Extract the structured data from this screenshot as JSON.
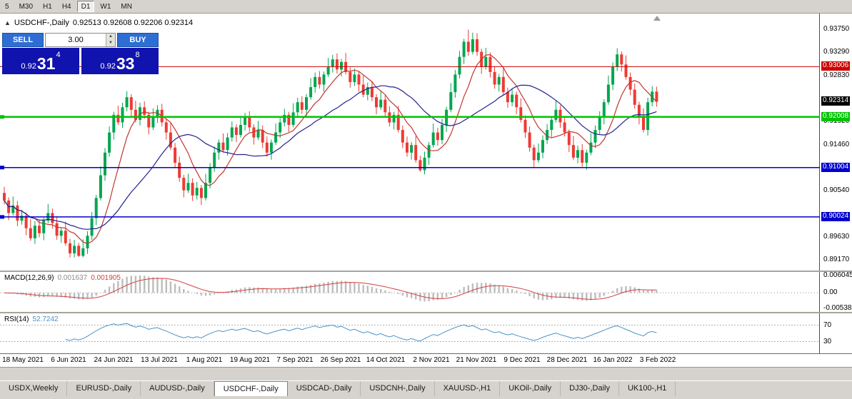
{
  "toolbar": {
    "timeframes": [
      {
        "label": "5",
        "active": false
      },
      {
        "label": "M30",
        "active": false
      },
      {
        "label": "H1",
        "active": false
      },
      {
        "label": "H4",
        "active": false
      },
      {
        "label": "D1",
        "active": true
      },
      {
        "label": "W1",
        "active": false
      },
      {
        "label": "MN",
        "active": false
      }
    ]
  },
  "trade_widget": {
    "sell_label": "SELL",
    "buy_label": "BUY",
    "volume": "3.00",
    "bid": {
      "prefix": "0.92",
      "pips": "31",
      "point": "4"
    },
    "ask": {
      "prefix": "0.92",
      "pips": "33",
      "point": "8"
    }
  },
  "colors": {
    "bull": "#00a64f",
    "bear": "#ee3a33",
    "ma_fast": "#c2362f",
    "ma_slow": "#22228e",
    "axis_text": "#000000",
    "current_price_box": "#000000"
  },
  "chart_data": {
    "type": "candlestick",
    "symbol_title": "USDCHF-,Daily",
    "ohlc_text": "0.92513 0.92608 0.92206 0.92314",
    "ohlc_display": {
      "open": "0.92513",
      "high": "0.92608",
      "low": "0.92206",
      "close": "0.92314"
    },
    "y_range": [
      0.8896,
      0.9406
    ],
    "y_axis_labels": [
      "0.93750",
      "0.93290",
      "0.92830",
      "0.91920",
      "0.91460",
      "0.90540",
      "0.89630",
      "0.89170"
    ],
    "levels": [
      {
        "price": 0.93006,
        "label": "0.93006",
        "color": "#cc0000",
        "width": 1,
        "marker": false
      },
      {
        "price": 0.92008,
        "label": "0.92008",
        "color": "#00c400",
        "width": 2.5,
        "marker": true
      },
      {
        "price": 0.91004,
        "label": "0.91004",
        "color": "#0000cc",
        "width": 1.5,
        "marker": true
      },
      {
        "price": 0.90024,
        "label": "0.90024",
        "color": "#0000cc",
        "width": 1.5,
        "marker": true
      }
    ],
    "current_price": "0.92314",
    "x_dates": [
      "18 May 2021",
      "6 Jun 2021",
      "24 Jun 2021",
      "13 Jul 2021",
      "1 Aug 2021",
      "19 Aug 2021",
      "7 Sep 2021",
      "26 Sep 2021",
      "14 Oct 2021",
      "2 Nov 2021",
      "21 Nov 2021",
      "9 Dec 2021",
      "28 Dec 2021",
      "16 Jan 2022",
      "3 Feb 2022"
    ],
    "moving_averages": [
      {
        "period": 8,
        "color": "#c2362f"
      },
      {
        "period": 21,
        "color": "#22228e"
      }
    ],
    "candles": [
      [
        0.905,
        0.9062,
        0.9027,
        0.9035
      ],
      [
        0.9035,
        0.9041,
        0.8996,
        0.901
      ],
      [
        0.901,
        0.9043,
        0.9005,
        0.9025
      ],
      [
        0.9025,
        0.9034,
        0.8984,
        0.8995
      ],
      [
        0.8995,
        0.9017,
        0.8987,
        0.9005
      ],
      [
        0.9005,
        0.9011,
        0.8966,
        0.898
      ],
      [
        0.898,
        0.8998,
        0.8955,
        0.896
      ],
      [
        0.896,
        0.8994,
        0.8949,
        0.8985
      ],
      [
        0.8985,
        0.8997,
        0.8962,
        0.897
      ],
      [
        0.897,
        0.9001,
        0.8956,
        0.8995
      ],
      [
        0.8995,
        0.9028,
        0.899,
        0.901
      ],
      [
        0.901,
        0.9019,
        0.8979,
        0.899
      ],
      [
        0.899,
        0.9002,
        0.8957,
        0.8965
      ],
      [
        0.8965,
        0.8981,
        0.8951,
        0.8975
      ],
      [
        0.8975,
        0.8993,
        0.8945,
        0.895
      ],
      [
        0.895,
        0.8959,
        0.8922,
        0.893
      ],
      [
        0.893,
        0.8957,
        0.8922,
        0.8945
      ],
      [
        0.8945,
        0.8951,
        0.8923,
        0.8925
      ],
      [
        0.8925,
        0.8958,
        0.8922,
        0.894
      ],
      [
        0.894,
        0.8974,
        0.8929,
        0.8965
      ],
      [
        0.8965,
        0.9012,
        0.8957,
        0.9
      ],
      [
        0.9,
        0.9046,
        0.8986,
        0.904
      ],
      [
        0.904,
        0.9103,
        0.9035,
        0.9085
      ],
      [
        0.9085,
        0.9139,
        0.9074,
        0.913
      ],
      [
        0.913,
        0.9182,
        0.9122,
        0.917
      ],
      [
        0.917,
        0.9211,
        0.9156,
        0.9205
      ],
      [
        0.9205,
        0.9223,
        0.9185,
        0.919
      ],
      [
        0.919,
        0.9229,
        0.9179,
        0.922
      ],
      [
        0.922,
        0.9252,
        0.9212,
        0.924
      ],
      [
        0.924,
        0.9246,
        0.9201,
        0.9215
      ],
      [
        0.9215,
        0.9233,
        0.919,
        0.9195
      ],
      [
        0.9195,
        0.9229,
        0.9184,
        0.922
      ],
      [
        0.922,
        0.9232,
        0.9197,
        0.9205
      ],
      [
        0.9205,
        0.9211,
        0.9166,
        0.918
      ],
      [
        0.918,
        0.9218,
        0.9175,
        0.92
      ],
      [
        0.92,
        0.9224,
        0.9189,
        0.9215
      ],
      [
        0.9215,
        0.9227,
        0.9182,
        0.919
      ],
      [
        0.919,
        0.9196,
        0.9156,
        0.917
      ],
      [
        0.917,
        0.9188,
        0.9135,
        0.914
      ],
      [
        0.914,
        0.9149,
        0.9099,
        0.911
      ],
      [
        0.911,
        0.9122,
        0.9072,
        0.908
      ],
      [
        0.908,
        0.9086,
        0.9041,
        0.9055
      ],
      [
        0.9055,
        0.9088,
        0.905,
        0.907
      ],
      [
        0.907,
        0.9079,
        0.9034,
        0.9045
      ],
      [
        0.9045,
        0.9072,
        0.9037,
        0.906
      ],
      [
        0.906,
        0.9066,
        0.9026,
        0.904
      ],
      [
        0.904,
        0.9088,
        0.9035,
        0.907
      ],
      [
        0.907,
        0.9109,
        0.9059,
        0.91
      ],
      [
        0.91,
        0.9142,
        0.9092,
        0.913
      ],
      [
        0.913,
        0.9156,
        0.9116,
        0.915
      ],
      [
        0.915,
        0.9168,
        0.913,
        0.9135
      ],
      [
        0.9135,
        0.9169,
        0.9124,
        0.916
      ],
      [
        0.916,
        0.9192,
        0.9152,
        0.918
      ],
      [
        0.918,
        0.9186,
        0.9151,
        0.9165
      ],
      [
        0.9165,
        0.9203,
        0.916,
        0.9185
      ],
      [
        0.9185,
        0.9209,
        0.9174,
        0.92
      ],
      [
        0.92,
        0.9212,
        0.9172,
        0.918
      ],
      [
        0.918,
        0.9186,
        0.9146,
        0.916
      ],
      [
        0.916,
        0.9193,
        0.9155,
        0.9175
      ],
      [
        0.9175,
        0.9184,
        0.9139,
        0.915
      ],
      [
        0.915,
        0.9162,
        0.9122,
        0.913
      ],
      [
        0.913,
        0.9156,
        0.9116,
        0.915
      ],
      [
        0.915,
        0.9188,
        0.9145,
        0.917
      ],
      [
        0.917,
        0.9199,
        0.9159,
        0.919
      ],
      [
        0.919,
        0.9217,
        0.9182,
        0.9205
      ],
      [
        0.9205,
        0.9211,
        0.9171,
        0.9185
      ],
      [
        0.9185,
        0.9228,
        0.918,
        0.921
      ],
      [
        0.921,
        0.9239,
        0.9199,
        0.923
      ],
      [
        0.923,
        0.9242,
        0.9207,
        0.9215
      ],
      [
        0.9215,
        0.9246,
        0.9201,
        0.924
      ],
      [
        0.924,
        0.9278,
        0.9235,
        0.926
      ],
      [
        0.926,
        0.9289,
        0.9249,
        0.928
      ],
      [
        0.928,
        0.9292,
        0.9257,
        0.9265
      ],
      [
        0.9265,
        0.9291,
        0.9251,
        0.9285
      ],
      [
        0.9285,
        0.9318,
        0.928,
        0.93
      ],
      [
        0.93,
        0.9324,
        0.9289,
        0.9315
      ],
      [
        0.9315,
        0.9327,
        0.9287,
        0.9295
      ],
      [
        0.9295,
        0.9316,
        0.9281,
        0.931
      ],
      [
        0.931,
        0.9328,
        0.9285,
        0.929
      ],
      [
        0.929,
        0.9299,
        0.9259,
        0.927
      ],
      [
        0.927,
        0.9297,
        0.9262,
        0.9285
      ],
      [
        0.9285,
        0.9291,
        0.9251,
        0.9265
      ],
      [
        0.9265,
        0.9283,
        0.924,
        0.9245
      ],
      [
        0.9245,
        0.9269,
        0.9234,
        0.926
      ],
      [
        0.926,
        0.9272,
        0.9232,
        0.924
      ],
      [
        0.924,
        0.9246,
        0.9206,
        0.922
      ],
      [
        0.922,
        0.9253,
        0.9215,
        0.9235
      ],
      [
        0.9235,
        0.9244,
        0.9199,
        0.921
      ],
      [
        0.921,
        0.9222,
        0.9182,
        0.919
      ],
      [
        0.919,
        0.9211,
        0.9176,
        0.9205
      ],
      [
        0.9205,
        0.9223,
        0.917,
        0.9175
      ],
      [
        0.9175,
        0.9184,
        0.9139,
        0.915
      ],
      [
        0.915,
        0.9162,
        0.9122,
        0.913
      ],
      [
        0.913,
        0.9151,
        0.9116,
        0.9145
      ],
      [
        0.9145,
        0.9163,
        0.911,
        0.9115
      ],
      [
        0.9115,
        0.9124,
        0.9092,
        0.9095
      ],
      [
        0.9095,
        0.9132,
        0.9087,
        0.912
      ],
      [
        0.912,
        0.9151,
        0.9106,
        0.9145
      ],
      [
        0.9145,
        0.9188,
        0.914,
        0.917
      ],
      [
        0.917,
        0.9179,
        0.9144,
        0.9155
      ],
      [
        0.9155,
        0.9197,
        0.9147,
        0.9185
      ],
      [
        0.9185,
        0.9221,
        0.9171,
        0.9215
      ],
      [
        0.9215,
        0.9268,
        0.921,
        0.925
      ],
      [
        0.925,
        0.9294,
        0.9239,
        0.9285
      ],
      [
        0.9285,
        0.9332,
        0.9277,
        0.932
      ],
      [
        0.932,
        0.9356,
        0.9306,
        0.935
      ],
      [
        0.935,
        0.9374,
        0.9322,
        0.933
      ],
      [
        0.933,
        0.9368,
        0.9325,
        0.9355
      ],
      [
        0.9355,
        0.9367,
        0.9322,
        0.933
      ],
      [
        0.933,
        0.9336,
        0.9286,
        0.93
      ],
      [
        0.93,
        0.9338,
        0.9295,
        0.932
      ],
      [
        0.932,
        0.9329,
        0.9279,
        0.929
      ],
      [
        0.929,
        0.9302,
        0.9257,
        0.9265
      ],
      [
        0.9265,
        0.9286,
        0.9251,
        0.928
      ],
      [
        0.928,
        0.9298,
        0.9245,
        0.925
      ],
      [
        0.925,
        0.9259,
        0.9219,
        0.923
      ],
      [
        0.923,
        0.9257,
        0.9222,
        0.9245
      ],
      [
        0.9245,
        0.9251,
        0.9206,
        0.922
      ],
      [
        0.922,
        0.9238,
        0.919,
        0.9195
      ],
      [
        0.9195,
        0.9204,
        0.9159,
        0.917
      ],
      [
        0.917,
        0.9182,
        0.9132,
        0.914
      ],
      [
        0.914,
        0.9146,
        0.9101,
        0.9115
      ],
      [
        0.9115,
        0.9148,
        0.911,
        0.913
      ],
      [
        0.913,
        0.9164,
        0.9119,
        0.9155
      ],
      [
        0.9155,
        0.9187,
        0.9147,
        0.9175
      ],
      [
        0.9175,
        0.9201,
        0.9161,
        0.9195
      ],
      [
        0.9195,
        0.9233,
        0.919,
        0.9215
      ],
      [
        0.9215,
        0.9224,
        0.9179,
        0.919
      ],
      [
        0.919,
        0.9202,
        0.9162,
        0.917
      ],
      [
        0.917,
        0.9176,
        0.9131,
        0.9145
      ],
      [
        0.9145,
        0.9163,
        0.9115,
        0.912
      ],
      [
        0.912,
        0.9144,
        0.9109,
        0.9135
      ],
      [
        0.9135,
        0.9147,
        0.9102,
        0.911
      ],
      [
        0.911,
        0.9136,
        0.9096,
        0.913
      ],
      [
        0.913,
        0.9168,
        0.9125,
        0.915
      ],
      [
        0.915,
        0.9184,
        0.9139,
        0.9175
      ],
      [
        0.9175,
        0.9212,
        0.9167,
        0.92
      ],
      [
        0.92,
        0.9236,
        0.9186,
        0.923
      ],
      [
        0.923,
        0.9283,
        0.9225,
        0.9265
      ],
      [
        0.9265,
        0.9309,
        0.9254,
        0.93
      ],
      [
        0.93,
        0.9337,
        0.9292,
        0.9325
      ],
      [
        0.9325,
        0.9331,
        0.9291,
        0.9305
      ],
      [
        0.9305,
        0.9323,
        0.9275,
        0.928
      ],
      [
        0.928,
        0.9289,
        0.9244,
        0.9255
      ],
      [
        0.9255,
        0.9267,
        0.9217,
        0.9225
      ],
      [
        0.9225,
        0.9231,
        0.9186,
        0.92
      ],
      [
        0.92,
        0.9218,
        0.917,
        0.9175
      ],
      [
        0.9175,
        0.9239,
        0.9164,
        0.923
      ],
      [
        0.923,
        0.9262,
        0.9222,
        0.9251
      ],
      [
        0.9251,
        0.9261,
        0.9221,
        0.9231
      ]
    ],
    "macd": {
      "title": "MACD(12,26,9)",
      "value_main": "0.001637",
      "value_signal": "0.001905",
      "params": [
        12,
        26,
        9
      ],
      "axis_labels": [
        "0.006045",
        "0.00",
        "-0.005383"
      ],
      "range": [
        -0.005383,
        0.006045
      ],
      "histogram_color": "#bdbdbd",
      "signal_color": "#d23f3f"
    },
    "rsi": {
      "title": "RSI(14)",
      "value": "52.7242",
      "period": 14,
      "levels": [
        "70",
        "30"
      ],
      "display_range": [
        90,
        10
      ],
      "line_color": "#4a93c8",
      "level_color": "#b0b0b0"
    }
  },
  "tabs": {
    "active_index": 3,
    "items": [
      "USDX,Weekly",
      "EURUSD-,Daily",
      "AUDUSD-,Daily",
      "USDCHF-,Daily",
      "USDCAD-,Daily",
      "USDCNH-,Daily",
      "XAUUSD-,H1",
      "UKOil-,Daily",
      "DJ30-,Daily",
      "UK100-,H1"
    ]
  }
}
